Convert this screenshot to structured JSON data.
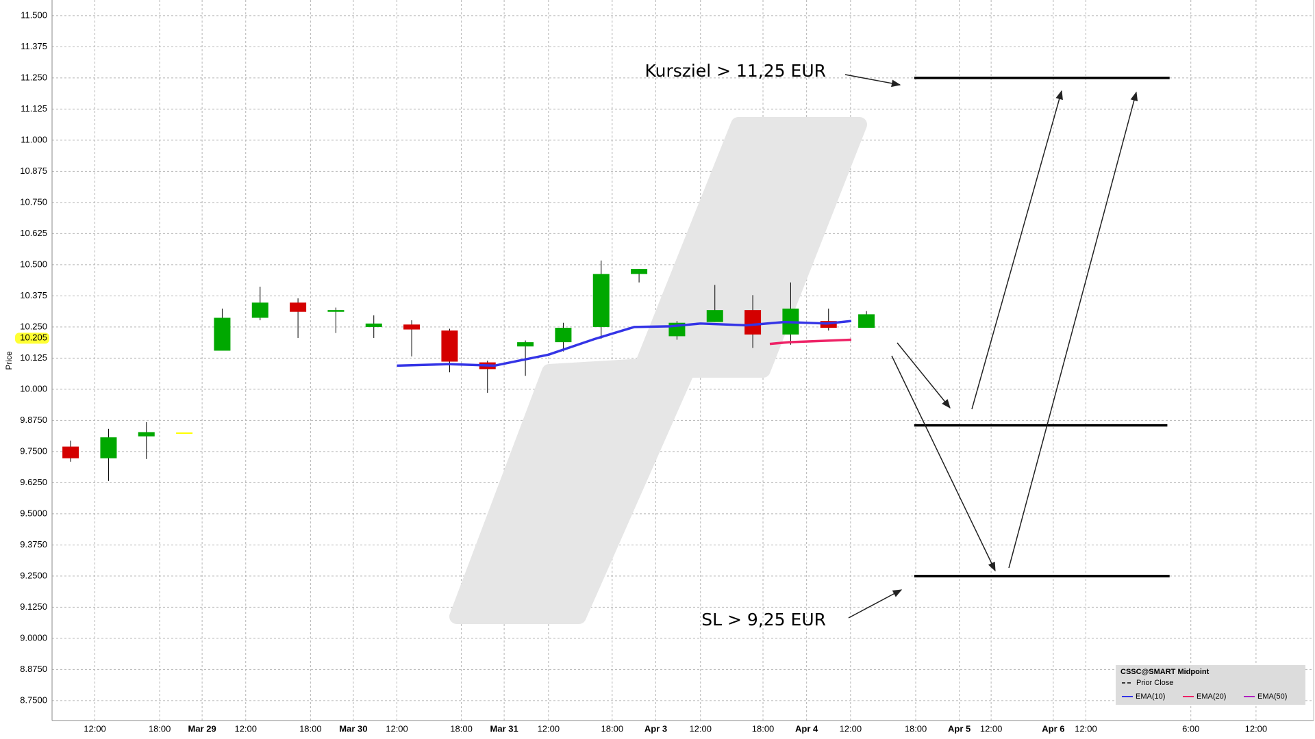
{
  "chart_data": {
    "type": "candlestick",
    "y_label": "Price",
    "ylim": [
      8.67,
      11.563
    ],
    "yticks": [
      {
        "value": 11.5,
        "label": "11.500"
      },
      {
        "value": 11.375,
        "label": "11.375"
      },
      {
        "value": 11.25,
        "label": "11.250"
      },
      {
        "value": 11.125,
        "label": "11.125"
      },
      {
        "value": 11.0,
        "label": "11.000"
      },
      {
        "value": 10.875,
        "label": "10.875"
      },
      {
        "value": 10.75,
        "label": "10.750"
      },
      {
        "value": 10.625,
        "label": "10.625"
      },
      {
        "value": 10.5,
        "label": "10.500"
      },
      {
        "value": 10.375,
        "label": "10.375"
      },
      {
        "value": 10.25,
        "label": "10.250"
      },
      {
        "value": 10.125,
        "label": "10.125"
      },
      {
        "value": 10.0,
        "label": "10.000"
      },
      {
        "value": 9.875,
        "label": "9.8750"
      },
      {
        "value": 9.75,
        "label": "9.7500"
      },
      {
        "value": 9.625,
        "label": "9.6250"
      },
      {
        "value": 9.5,
        "label": "9.5000"
      },
      {
        "value": 9.375,
        "label": "9.3750"
      },
      {
        "value": 9.25,
        "label": "9.2500"
      },
      {
        "value": 9.125,
        "label": "9.1250"
      },
      {
        "value": 9.0,
        "label": "9.0000"
      },
      {
        "value": 8.875,
        "label": "8.8750"
      },
      {
        "value": 8.75,
        "label": "8.7500"
      }
    ],
    "xlim": [
      -0.49,
      32.8
    ],
    "xticks": [
      {
        "value": 0.64,
        "label": "12:00"
      },
      {
        "value": 2.35,
        "label": "18:00"
      },
      {
        "value": 3.47,
        "label": "Mar 29"
      },
      {
        "value": 4.62,
        "label": "12:00"
      },
      {
        "value": 6.33,
        "label": "18:00"
      },
      {
        "value": 7.46,
        "label": "Mar 30"
      },
      {
        "value": 8.61,
        "label": "12:00"
      },
      {
        "value": 10.31,
        "label": "18:00"
      },
      {
        "value": 11.44,
        "label": "Mar 31"
      },
      {
        "value": 12.61,
        "label": "12:00"
      },
      {
        "value": 14.29,
        "label": "18:00"
      },
      {
        "value": 15.44,
        "label": "Apr 3"
      },
      {
        "value": 16.62,
        "label": "12:00"
      },
      {
        "value": 18.27,
        "label": "18:00"
      },
      {
        "value": 19.42,
        "label": "Apr 4"
      },
      {
        "value": 20.58,
        "label": "12:00"
      },
      {
        "value": 22.3,
        "label": "18:00"
      },
      {
        "value": 23.45,
        "label": "Apr 5"
      },
      {
        "value": 24.29,
        "label": "12:00"
      },
      {
        "value": 25.93,
        "label": "Apr 6"
      },
      {
        "value": 26.79,
        "label": "12:00"
      },
      {
        "value": 29.56,
        "label": "6:00"
      },
      {
        "value": 31.28,
        "label": "12:00"
      }
    ],
    "grid": true,
    "up_color": "#00a800",
    "down_color": "#d40000",
    "doji_color": "#ffff00",
    "wick_color": "#000000",
    "x": [
      0,
      1,
      2,
      3,
      4,
      5,
      6,
      7,
      8,
      9,
      10,
      11,
      12,
      13,
      14,
      15,
      16,
      17,
      18,
      19,
      20,
      21
    ],
    "open": [
      9.77,
      9.723,
      9.811,
      9.824,
      10.155,
      10.287,
      10.348,
      10.311,
      10.25,
      10.26,
      10.236,
      10.108,
      10.172,
      10.189,
      10.25,
      10.463,
      10.213,
      10.27,
      10.318,
      10.22,
      10.274,
      10.247
    ],
    "high": [
      9.794,
      9.841,
      9.868,
      9.824,
      10.324,
      10.412,
      10.365,
      10.328,
      10.297,
      10.277,
      10.243,
      10.115,
      10.196,
      10.267,
      10.517,
      10.483,
      10.274,
      10.419,
      10.378,
      10.429,
      10.324,
      10.314
    ],
    "low": [
      9.709,
      9.632,
      9.72,
      9.824,
      10.155,
      10.277,
      10.206,
      10.226,
      10.206,
      10.132,
      10.068,
      9.986,
      10.054,
      10.152,
      10.203,
      10.429,
      10.199,
      10.27,
      10.166,
      10.179,
      10.236,
      10.247
    ],
    "close": [
      9.723,
      9.807,
      9.828,
      9.824,
      10.287,
      10.348,
      10.311,
      10.318,
      10.264,
      10.24,
      10.111,
      10.081,
      10.189,
      10.247,
      10.463,
      10.483,
      10.267,
      10.318,
      10.22,
      10.324,
      10.247,
      10.301
    ],
    "last_price": 10.205,
    "last_price_color": "#ffff33",
    "series": [
      {
        "name": "EMA(10)",
        "color": "#3434e6",
        "x": [
          8.61,
          9.98,
          11.19,
          12.61,
          13.85,
          14.87,
          15.84,
          16.62,
          17.83,
          18.83,
          19.96,
          20.6
        ],
        "values": [
          10.095,
          10.101,
          10.095,
          10.139,
          10.203,
          10.25,
          10.253,
          10.264,
          10.257,
          10.27,
          10.264,
          10.274
        ]
      },
      {
        "name": "EMA(20)",
        "color": "#ee2266",
        "x": [
          18.45,
          18.95,
          20.6
        ],
        "values": [
          10.182,
          10.189,
          10.199
        ]
      },
      {
        "name": "EMA(50)",
        "color": "#b020c0",
        "x": [],
        "values": []
      }
    ],
    "legend": {
      "title": "CSSC@SMART Midpoint",
      "prior_close": "Prior Close"
    },
    "annotations": [
      {
        "text": "Kursziel > 11,25 EUR"
      },
      {
        "text": "SL > 9,25 EUR"
      }
    ],
    "levels": [
      {
        "value": 11.25,
        "x": [
          22.26,
          29.0
        ]
      },
      {
        "value": 9.855,
        "x": [
          22.26,
          28.94
        ]
      },
      {
        "value": 9.25,
        "x": [
          22.26,
          29.0
        ]
      }
    ]
  }
}
